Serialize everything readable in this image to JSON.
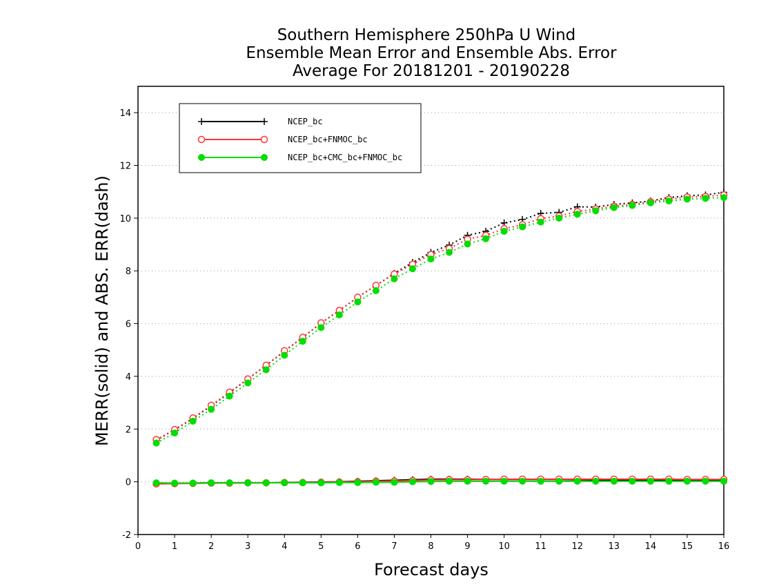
{
  "chart_data": {
    "type": "line",
    "title": [
      "Southern Hemisphere 250hPa U Wind",
      "Ensemble Mean Error and Ensemble Abs. Error",
      "Average For 20181201 - 20190228"
    ],
    "xlabel": "Forecast days",
    "ylabel": "MERR(solid) and ABS. ERR(dash)",
    "xlim": [
      0,
      16
    ],
    "ylim": [
      -2,
      15
    ],
    "xticks": [
      0,
      1,
      2,
      3,
      4,
      5,
      6,
      7,
      8,
      9,
      10,
      11,
      12,
      13,
      14,
      15,
      16
    ],
    "yticks": [
      -2,
      0,
      2,
      4,
      6,
      8,
      10,
      12,
      14
    ],
    "grid": "horizontal dotted",
    "legend_position": "top-left",
    "x": [
      0.5,
      1,
      1.5,
      2,
      2.5,
      3,
      3.5,
      4,
      4.5,
      5,
      5.5,
      6,
      6.5,
      7,
      7.5,
      8,
      8.5,
      9,
      9.5,
      10,
      10.5,
      11,
      11.5,
      12,
      12.5,
      13,
      13.5,
      14,
      14.5,
      15,
      15.5,
      16
    ],
    "series": [
      {
        "name": "NCEP_bc",
        "color": "#000000",
        "marker": "plus",
        "merr": [
          -0.05,
          -0.06,
          -0.05,
          -0.04,
          -0.04,
          -0.04,
          -0.04,
          -0.03,
          -0.02,
          -0.01,
          0.0,
          0.02,
          0.04,
          0.06,
          0.08,
          0.1,
          0.1,
          0.1,
          0.09,
          0.09,
          0.09,
          0.09,
          0.09,
          0.08,
          0.07,
          0.07,
          0.06,
          0.06,
          0.06,
          0.06,
          0.06,
          0.06
        ],
        "abs_err": [
          1.58,
          1.97,
          2.4,
          2.88,
          3.38,
          3.9,
          4.42,
          4.95,
          5.48,
          6.02,
          6.5,
          7.0,
          7.45,
          7.9,
          8.32,
          8.7,
          8.98,
          9.35,
          9.5,
          9.82,
          9.95,
          10.18,
          10.22,
          10.43,
          10.42,
          10.52,
          10.58,
          10.65,
          10.78,
          10.85,
          10.88,
          10.98
        ]
      },
      {
        "name": "NCEP_bc+FNMOC_bc",
        "color": "#ff3333",
        "marker": "open-circle",
        "merr": [
          -0.08,
          -0.07,
          -0.06,
          -0.05,
          -0.05,
          -0.04,
          -0.04,
          -0.03,
          -0.03,
          -0.02,
          -0.01,
          0.0,
          0.02,
          0.03,
          0.05,
          0.07,
          0.08,
          0.08,
          0.09,
          0.1,
          0.1,
          0.1,
          0.1,
          0.1,
          0.1,
          0.1,
          0.1,
          0.1,
          0.1,
          0.09,
          0.09,
          0.09
        ],
        "abs_err": [
          1.6,
          1.98,
          2.42,
          2.9,
          3.4,
          3.9,
          4.42,
          4.97,
          5.48,
          6.03,
          6.5,
          7.0,
          7.45,
          7.88,
          8.25,
          8.62,
          8.85,
          9.2,
          9.35,
          9.6,
          9.75,
          9.98,
          10.08,
          10.25,
          10.35,
          10.45,
          10.52,
          10.62,
          10.72,
          10.8,
          10.82,
          10.88
        ]
      },
      {
        "name": "NCEP_bc+CMC_bc+FNMOC_bc",
        "color": "#00dd00",
        "marker": "filled-circle",
        "merr": [
          -0.04,
          -0.05,
          -0.05,
          -0.04,
          -0.04,
          -0.04,
          -0.04,
          -0.04,
          -0.04,
          -0.04,
          -0.03,
          -0.03,
          -0.02,
          -0.02,
          0.0,
          0.01,
          0.02,
          0.02,
          0.02,
          0.02,
          0.02,
          0.02,
          0.02,
          0.02,
          0.02,
          0.02,
          0.02,
          0.02,
          0.02,
          0.02,
          0.02,
          0.02
        ],
        "abs_err": [
          1.47,
          1.85,
          2.3,
          2.75,
          3.25,
          3.75,
          4.25,
          4.8,
          5.33,
          5.85,
          6.33,
          6.82,
          7.25,
          7.7,
          8.08,
          8.45,
          8.7,
          9.02,
          9.22,
          9.5,
          9.67,
          9.85,
          10.0,
          10.15,
          10.28,
          10.4,
          10.48,
          10.58,
          10.65,
          10.72,
          10.75,
          10.78
        ]
      }
    ]
  }
}
